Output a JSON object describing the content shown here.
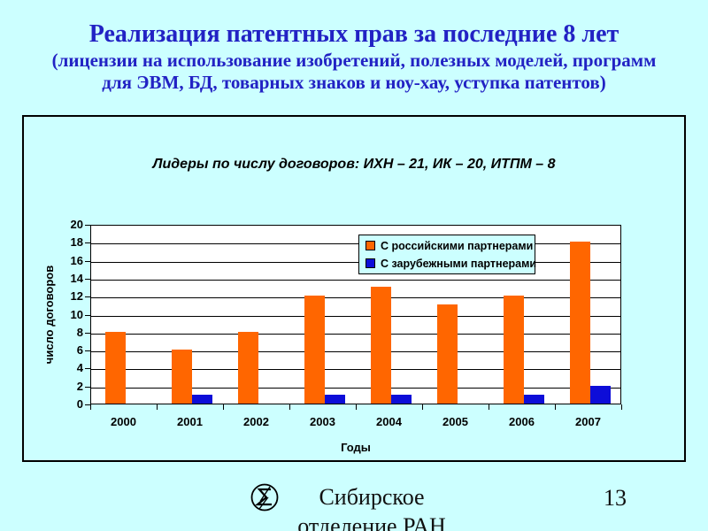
{
  "slide": {
    "title_line1": "Реализация патентных прав за последние 8 лет",
    "title_line2": "(лицензии на использование изобретений, полезных моделей, программ",
    "title_line3": "для ЭВМ, БД, товарных знаков и ноу-хау, уступка патентов)",
    "footer": {
      "org_line1": "Сибирское",
      "org_line2": "отделение РАН",
      "logo_name": "sb-ras-emblem",
      "page_number": "13"
    }
  },
  "colors": {
    "background": "#CCFFFF",
    "title_text": "#2222C4",
    "plot_background": "#FFFFFF",
    "axis_and_grid": "#000000",
    "series_russian_orange": "#FF6600",
    "series_foreign_blue": "#0D0DD8"
  },
  "chart_data": {
    "type": "bar",
    "title": "Лидеры по числу договоров: ИХН – 21, ИК – 20, ИТПМ – 8",
    "categories": [
      "2000",
      "2001",
      "2002",
      "2003",
      "2004",
      "2005",
      "2006",
      "2007"
    ],
    "series": [
      {
        "name": "С российскими партнерами",
        "color": "#FF6600",
        "values": [
          8,
          6,
          8,
          12,
          13,
          11,
          12,
          18
        ]
      },
      {
        "name": "С зарубежными партнерами",
        "color": "#0D0DD8",
        "values": [
          0,
          1,
          0,
          1,
          1,
          0,
          1,
          2
        ]
      }
    ],
    "xlabel": "Годы",
    "ylabel": "число договоров",
    "ylim": [
      0,
      20
    ],
    "yticks": [
      0,
      2,
      4,
      6,
      8,
      10,
      12,
      14,
      16,
      18,
      20
    ],
    "ytick_step": 2,
    "grid": true,
    "legend_position": "top-right-inside"
  }
}
